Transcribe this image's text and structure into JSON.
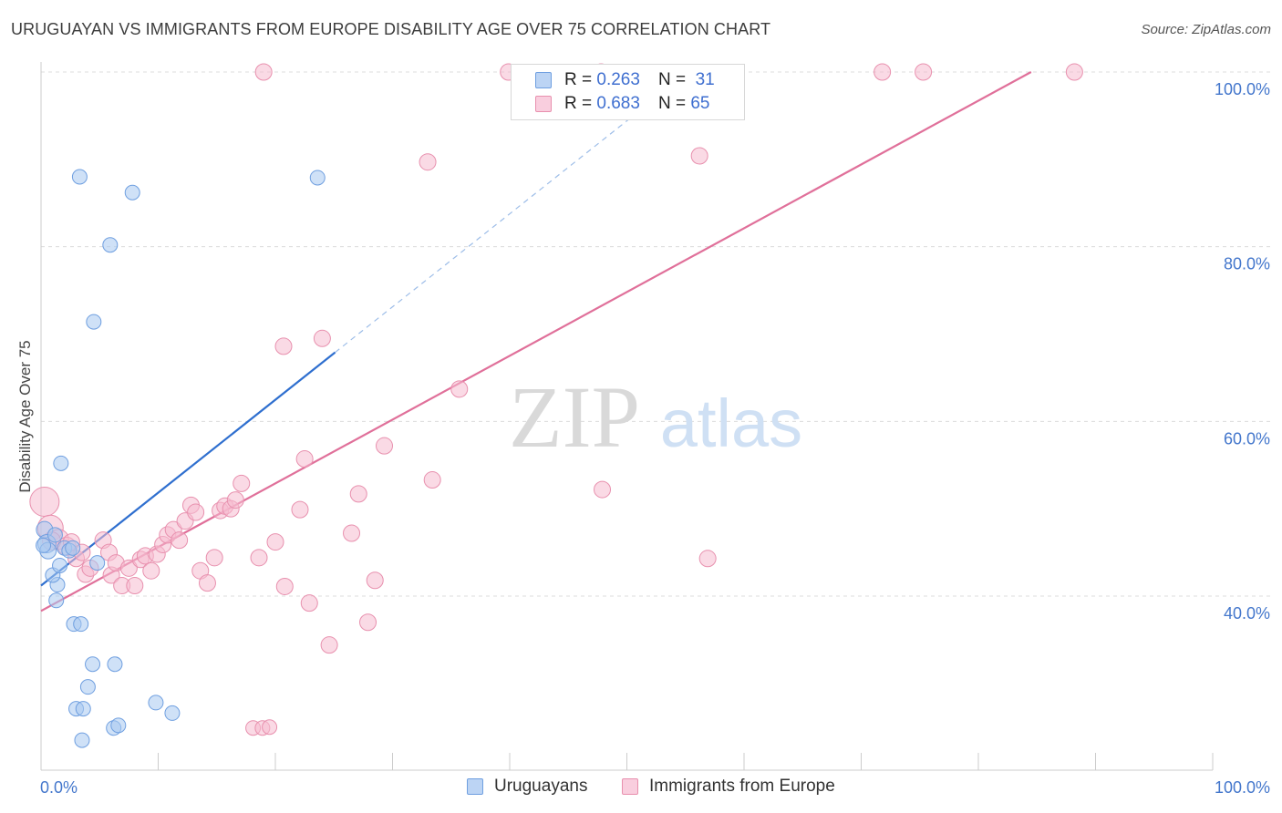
{
  "header": {
    "title": "URUGUAYAN VS IMMIGRANTS FROM EUROPE DISABILITY AGE OVER 75 CORRELATION CHART",
    "source": "Source: ZipAtlas.com"
  },
  "watermark": {
    "zip": "ZIP",
    "atlas": "atlas"
  },
  "colors": {
    "blue_fill": "#a8c8f0",
    "blue_stroke": "#6f9fe0",
    "blue_line": "#2f6fcf",
    "pink_fill": "#f6bcd0",
    "pink_stroke": "#e890ae",
    "pink_line": "#e0709a",
    "grid": "#dcdcdc",
    "axis_label": "#4477cc"
  },
  "legend": {
    "rows": [
      {
        "r_label": "R =",
        "r_value": "0.263",
        "n_label": "N =",
        "n_value": "31",
        "color": "#a8c8f0"
      },
      {
        "r_label": "R =",
        "r_value": "0.683",
        "n_label": "N =",
        "n_value": "65",
        "color": "#f6bcd0"
      }
    ]
  },
  "bottom_legend": {
    "items": [
      {
        "label": "Uruguayans",
        "color": "#a8c8f0"
      },
      {
        "label": "Immigrants from Europe",
        "color": "#f6bcd0"
      }
    ]
  },
  "chart_data": {
    "type": "scatter",
    "title": "URUGUAYAN VS IMMIGRANTS FROM EUROPE DISABILITY AGE OVER 75 CORRELATION CHART",
    "xlabel": "",
    "ylabel": "Disability Age Over 75",
    "xlim": [
      0,
      100
    ],
    "ylim": [
      19,
      101
    ],
    "x_tick_labels": [
      "0.0%",
      "100.0%"
    ],
    "y_ticks": [
      40,
      60,
      80,
      100
    ],
    "y_tick_labels": [
      "40.0%",
      "60.0%",
      "80.0%",
      "100.0%"
    ],
    "grid": true,
    "series": [
      {
        "name": "Uruguayans",
        "r": 0.263,
        "n": 31,
        "points": [
          {
            "x": 0.3,
            "y": 47.6,
            "s": 9
          },
          {
            "x": 0.5,
            "y": 46.0,
            "s": 10
          },
          {
            "x": 0.6,
            "y": 45.2,
            "s": 9
          },
          {
            "x": 1.2,
            "y": 47.0,
            "s": 8
          },
          {
            "x": 1.4,
            "y": 41.3,
            "s": 8
          },
          {
            "x": 1.0,
            "y": 42.4,
            "s": 8
          },
          {
            "x": 1.3,
            "y": 39.5,
            "s": 8
          },
          {
            "x": 1.6,
            "y": 43.5,
            "s": 8
          },
          {
            "x": 2.0,
            "y": 45.5,
            "s": 8
          },
          {
            "x": 2.4,
            "y": 45.2,
            "s": 8
          },
          {
            "x": 2.7,
            "y": 45.5,
            "s": 8
          },
          {
            "x": 1.7,
            "y": 55.2,
            "s": 8
          },
          {
            "x": 2.8,
            "y": 36.8,
            "s": 8
          },
          {
            "x": 3.4,
            "y": 36.8,
            "s": 8
          },
          {
            "x": 4.0,
            "y": 29.6,
            "s": 8
          },
          {
            "x": 3.0,
            "y": 27.1,
            "s": 8
          },
          {
            "x": 3.6,
            "y": 27.1,
            "s": 8
          },
          {
            "x": 3.5,
            "y": 23.5,
            "s": 8
          },
          {
            "x": 4.4,
            "y": 32.2,
            "s": 8
          },
          {
            "x": 4.8,
            "y": 43.8,
            "s": 8
          },
          {
            "x": 6.3,
            "y": 32.2,
            "s": 8
          },
          {
            "x": 6.2,
            "y": 24.9,
            "s": 8
          },
          {
            "x": 6.6,
            "y": 25.2,
            "s": 8
          },
          {
            "x": 9.8,
            "y": 27.8,
            "s": 8
          },
          {
            "x": 11.2,
            "y": 26.6,
            "s": 8
          },
          {
            "x": 3.3,
            "y": 88.0,
            "s": 8
          },
          {
            "x": 7.8,
            "y": 86.2,
            "s": 8
          },
          {
            "x": 5.9,
            "y": 80.2,
            "s": 8
          },
          {
            "x": 4.5,
            "y": 71.4,
            "s": 8
          },
          {
            "x": 23.6,
            "y": 87.9,
            "s": 8
          },
          {
            "x": 0.2,
            "y": 45.8,
            "s": 8
          }
        ],
        "trend": {
          "x": [
            0,
            25.1
          ],
          "y": [
            41.2,
            67.9
          ]
        },
        "trend_dashed": {
          "x": [
            25.1,
            53.0
          ],
          "y": [
            67.9,
            97.6
          ]
        }
      },
      {
        "name": "Immigrants from Europe",
        "r": 0.683,
        "n": 65,
        "points": [
          {
            "x": 0.3,
            "y": 50.8,
            "s": 16
          },
          {
            "x": 0.8,
            "y": 47.8,
            "s": 14
          },
          {
            "x": 1.5,
            "y": 46.5,
            "s": 11
          },
          {
            "x": 2.2,
            "y": 45.7,
            "s": 10
          },
          {
            "x": 2.6,
            "y": 46.2,
            "s": 9
          },
          {
            "x": 3.0,
            "y": 44.3,
            "s": 9
          },
          {
            "x": 3.5,
            "y": 45.0,
            "s": 9
          },
          {
            "x": 3.8,
            "y": 42.5,
            "s": 9
          },
          {
            "x": 4.2,
            "y": 43.2,
            "s": 9
          },
          {
            "x": 5.3,
            "y": 46.4,
            "s": 9
          },
          {
            "x": 5.8,
            "y": 45.0,
            "s": 9
          },
          {
            "x": 6.0,
            "y": 42.4,
            "s": 9
          },
          {
            "x": 6.4,
            "y": 43.8,
            "s": 9
          },
          {
            "x": 6.9,
            "y": 41.2,
            "s": 9
          },
          {
            "x": 7.5,
            "y": 43.2,
            "s": 9
          },
          {
            "x": 8.0,
            "y": 41.2,
            "s": 9
          },
          {
            "x": 8.5,
            "y": 44.2,
            "s": 9
          },
          {
            "x": 8.9,
            "y": 44.6,
            "s": 9
          },
          {
            "x": 9.4,
            "y": 42.9,
            "s": 9
          },
          {
            "x": 9.9,
            "y": 44.8,
            "s": 9
          },
          {
            "x": 10.4,
            "y": 45.9,
            "s": 9
          },
          {
            "x": 10.8,
            "y": 47.0,
            "s": 9
          },
          {
            "x": 11.3,
            "y": 47.6,
            "s": 9
          },
          {
            "x": 11.8,
            "y": 46.4,
            "s": 9
          },
          {
            "x": 12.3,
            "y": 48.6,
            "s": 9
          },
          {
            "x": 12.8,
            "y": 50.4,
            "s": 9
          },
          {
            "x": 13.2,
            "y": 49.6,
            "s": 9
          },
          {
            "x": 13.6,
            "y": 42.9,
            "s": 9
          },
          {
            "x": 14.2,
            "y": 41.5,
            "s": 9
          },
          {
            "x": 14.8,
            "y": 44.4,
            "s": 9
          },
          {
            "x": 15.3,
            "y": 49.8,
            "s": 9
          },
          {
            "x": 15.7,
            "y": 50.3,
            "s": 9
          },
          {
            "x": 16.2,
            "y": 50.0,
            "s": 9
          },
          {
            "x": 16.6,
            "y": 51.0,
            "s": 9
          },
          {
            "x": 17.1,
            "y": 52.9,
            "s": 9
          },
          {
            "x": 18.6,
            "y": 44.4,
            "s": 9
          },
          {
            "x": 20.0,
            "y": 46.2,
            "s": 9
          },
          {
            "x": 20.8,
            "y": 41.1,
            "s": 9
          },
          {
            "x": 22.1,
            "y": 49.9,
            "s": 9
          },
          {
            "x": 22.5,
            "y": 55.7,
            "s": 9
          },
          {
            "x": 22.9,
            "y": 39.2,
            "s": 9
          },
          {
            "x": 24.0,
            "y": 69.5,
            "s": 9
          },
          {
            "x": 20.7,
            "y": 68.6,
            "s": 9
          },
          {
            "x": 24.6,
            "y": 34.4,
            "s": 9
          },
          {
            "x": 26.5,
            "y": 47.2,
            "s": 9
          },
          {
            "x": 27.1,
            "y": 51.7,
            "s": 9
          },
          {
            "x": 27.9,
            "y": 37.0,
            "s": 9
          },
          {
            "x": 28.5,
            "y": 41.8,
            "s": 9
          },
          {
            "x": 29.3,
            "y": 57.2,
            "s": 9
          },
          {
            "x": 33.0,
            "y": 89.7,
            "s": 9
          },
          {
            "x": 33.4,
            "y": 53.3,
            "s": 9
          },
          {
            "x": 35.7,
            "y": 63.7,
            "s": 9
          },
          {
            "x": 39.9,
            "y": 100.0,
            "s": 9
          },
          {
            "x": 47.8,
            "y": 100.0,
            "s": 9
          },
          {
            "x": 47.9,
            "y": 52.2,
            "s": 9
          },
          {
            "x": 56.2,
            "y": 90.4,
            "s": 9
          },
          {
            "x": 56.9,
            "y": 44.3,
            "s": 9
          },
          {
            "x": 71.8,
            "y": 100.0,
            "s": 9
          },
          {
            "x": 75.3,
            "y": 100.0,
            "s": 9
          },
          {
            "x": 88.2,
            "y": 100.0,
            "s": 9
          },
          {
            "x": 19.0,
            "y": 100.0,
            "s": 9
          },
          {
            "x": 18.1,
            "y": 24.9,
            "s": 8
          },
          {
            "x": 18.9,
            "y": 24.9,
            "s": 8
          },
          {
            "x": 19.5,
            "y": 25.0,
            "s": 8
          },
          {
            "x": 0.9,
            "y": 46.3,
            "s": 10
          }
        ],
        "trend": {
          "x": [
            0,
            84.5
          ],
          "y": [
            38.3,
            100.0
          ]
        }
      }
    ]
  }
}
